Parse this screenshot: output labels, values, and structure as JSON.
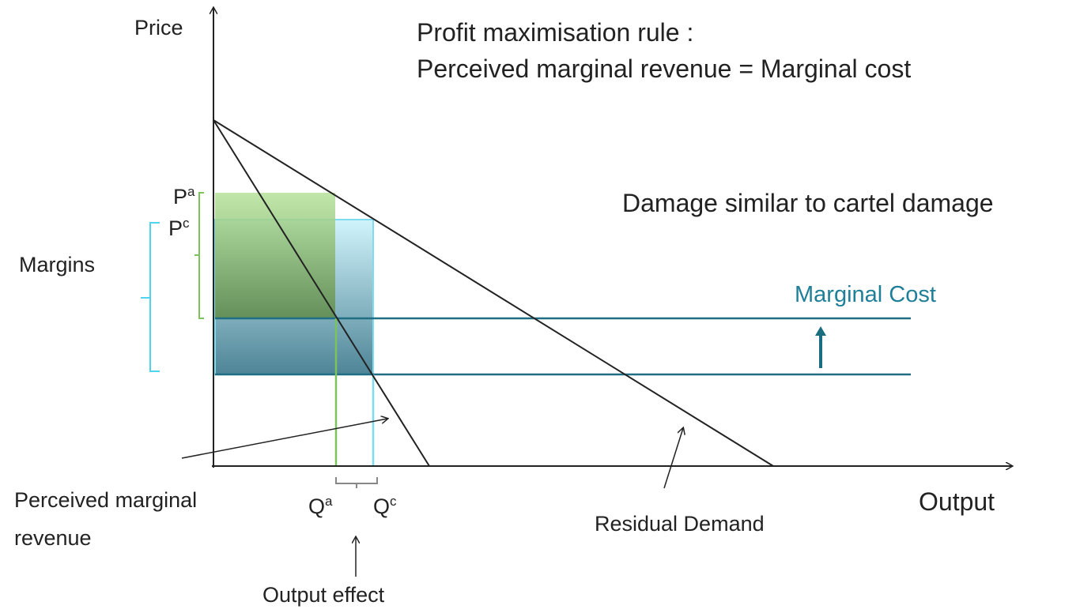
{
  "title_lines": [
    "Profit maximisation rule :",
    "Perceived marginal revenue = Marginal cost"
  ],
  "note": "Damage similar to cartel damage",
  "axes": {
    "y_label": "Price",
    "x_label": "Output"
  },
  "labels": {
    "marginal_cost": "Marginal Cost",
    "margins": "Margins",
    "pa": {
      "base": "P",
      "sup": "a"
    },
    "pc": {
      "base": "P",
      "sup": "c"
    },
    "qa": {
      "base": "Q",
      "sup": "a"
    },
    "qc": {
      "base": "Q",
      "sup": "c"
    },
    "perceived_mr": [
      "Perceived marginal",
      "revenue"
    ],
    "residual_demand": "Residual Demand",
    "output_effect": "Output effect"
  }
}
